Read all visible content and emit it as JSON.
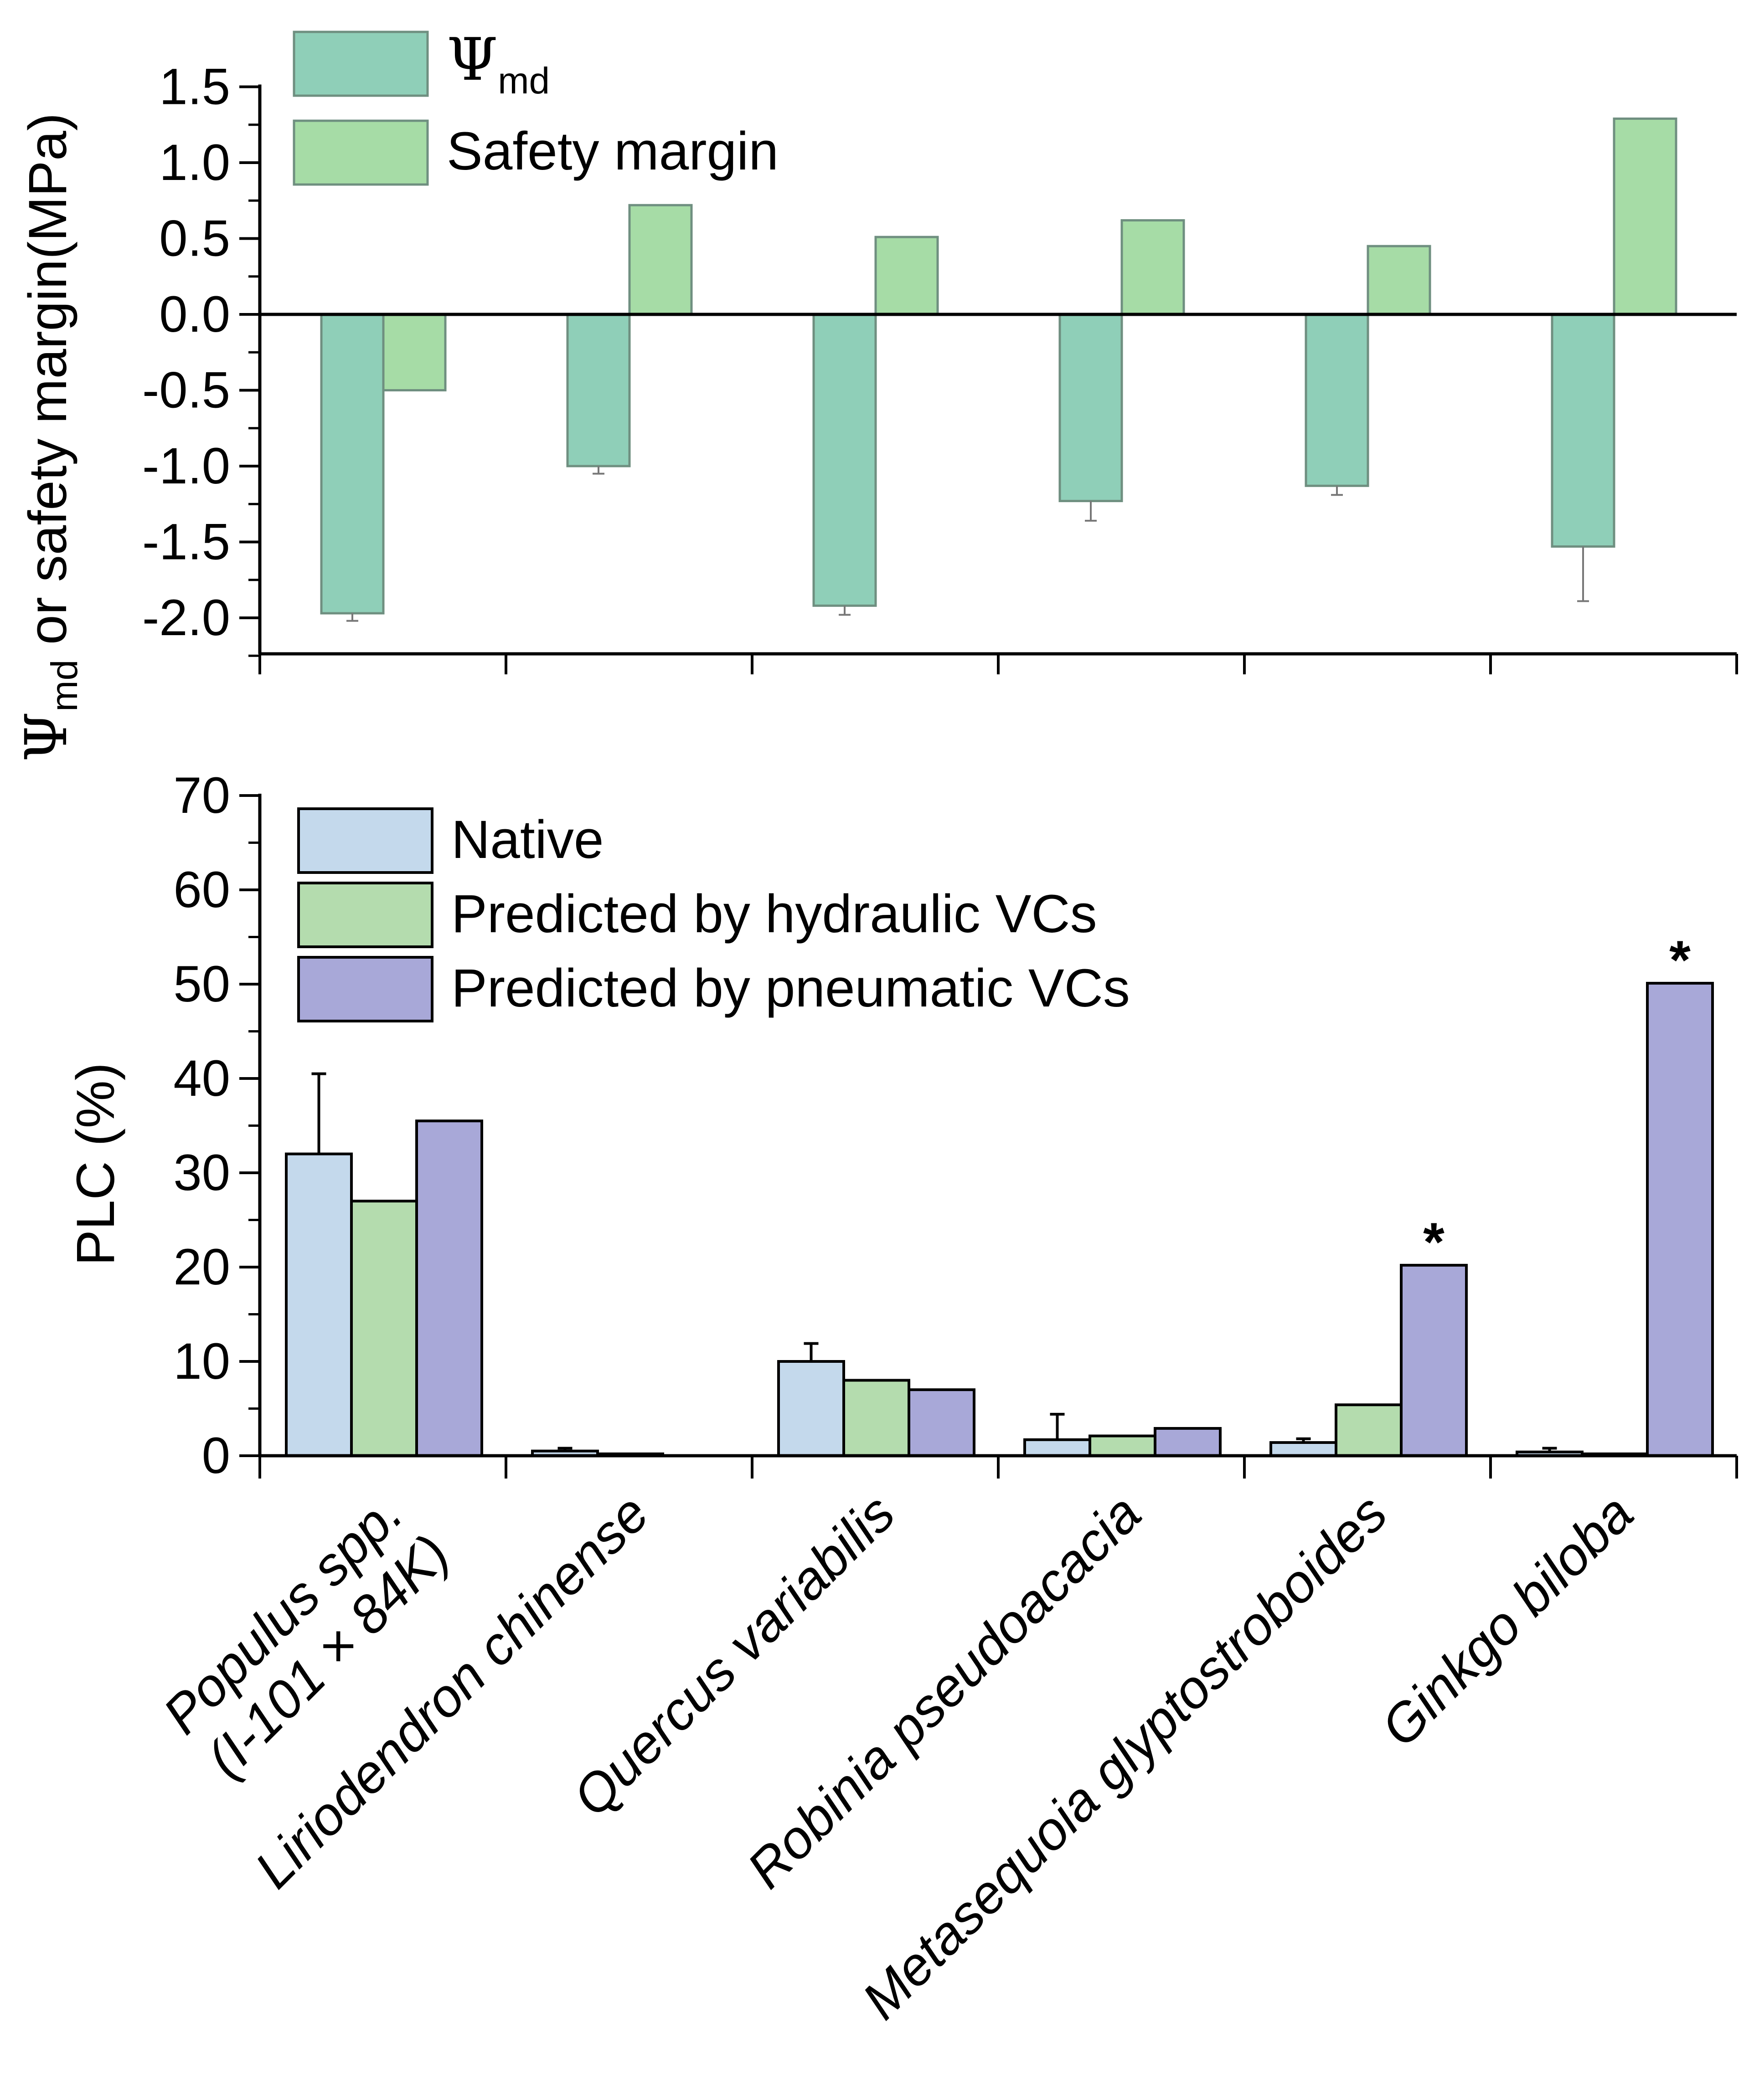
{
  "colors": {
    "psi_md": "#8fcfb8",
    "safety_margin": "#a6dca6",
    "native": "#c4d9ec",
    "hydraulic": "#b4dcae",
    "pneumatic": "#a8a8d8",
    "bar_edge_top": "#6f8f80",
    "bar_edge_bottom": "#000000",
    "axis": "#000000"
  },
  "categories": [
    {
      "name": "Populus spp.",
      "extra": "(I-101 × 84K)"
    },
    {
      "name": "Liriodendron chinense",
      "extra": ""
    },
    {
      "name": "Quercus variabilis",
      "extra": ""
    },
    {
      "name": "Robinia pseudoacacia",
      "extra": ""
    },
    {
      "name": "Metasequoia glyptostroboides",
      "extra": ""
    },
    {
      "name": "Ginkgo biloba",
      "extra": ""
    }
  ],
  "chart_data": [
    {
      "type": "bar",
      "panel": "top",
      "ylabel": {
        "symbol": "Ψ",
        "sub": "md",
        "rest": " or safety margin(MPa)"
      },
      "ylim": [
        -2.25,
        1.5
      ],
      "yticks": [
        "1.5",
        "1.0",
        "0.5",
        "0.0",
        "-0.5",
        "-1.0",
        "-1.5",
        "-2.0"
      ],
      "ytick_values": [
        1.5,
        1.0,
        0.5,
        0.0,
        -0.5,
        -1.0,
        -1.5,
        -2.0
      ],
      "legend": [
        {
          "symbol": "Ψ",
          "sub": "md",
          "label": ""
        },
        {
          "symbol": "",
          "sub": "",
          "label": "Safety margin"
        }
      ],
      "series": [
        {
          "name": "Ψmd",
          "values": [
            -1.97,
            -1.0,
            -1.92,
            -1.23,
            -1.13,
            -1.53
          ],
          "errors": [
            0.05,
            0.05,
            0.06,
            0.13,
            0.06,
            0.36
          ]
        },
        {
          "name": "Safety margin",
          "values": [
            -0.5,
            0.72,
            0.51,
            0.62,
            0.45,
            1.29
          ],
          "errors": [
            0,
            0,
            0,
            0,
            0,
            0
          ]
        }
      ]
    },
    {
      "type": "bar",
      "panel": "bottom",
      "ylabel": "PLC (%)",
      "ylim": [
        0,
        70
      ],
      "yticks": [
        "0",
        "10",
        "20",
        "30",
        "40",
        "50",
        "60",
        "70"
      ],
      "ytick_values": [
        0,
        10,
        20,
        30,
        40,
        50,
        60,
        70
      ],
      "legend": [
        "Native",
        "Predicted by hydraulic VCs",
        "Predicted by pneumatic VCs"
      ],
      "series": [
        {
          "name": "Native",
          "values": [
            32,
            0.5,
            10,
            1.7,
            1.4,
            0.4
          ],
          "errors": [
            8.5,
            0.3,
            1.9,
            2.7,
            0.4,
            0.4
          ]
        },
        {
          "name": "Predicted by hydraulic VCs",
          "values": [
            27,
            0.2,
            8,
            2.1,
            5.4,
            0.2
          ],
          "errors": [
            0,
            0,
            0,
            0,
            0,
            0
          ]
        },
        {
          "name": "Predicted by pneumatic VCs",
          "values": [
            35.5,
            0,
            7,
            2.9,
            20.2,
            50.1
          ],
          "errors": [
            0,
            0,
            0,
            0,
            0,
            0
          ]
        }
      ],
      "annotations": [
        {
          "category": 4,
          "series": 2,
          "text": "*"
        },
        {
          "category": 5,
          "series": 2,
          "text": "*"
        }
      ]
    }
  ]
}
